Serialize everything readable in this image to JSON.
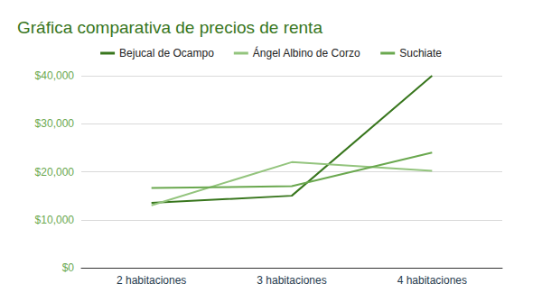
{
  "chart_data": {
    "type": "line",
    "title": "Gráfica comparativa de precios de renta",
    "categories": [
      "2 habitaciones",
      "3 habitaciones",
      "4 habitaciones"
    ],
    "series": [
      {
        "name": "Bejucal de Ocampo",
        "color": "#38761d",
        "values": [
          13500,
          15000,
          40000
        ]
      },
      {
        "name": "Ángel Albino de Corzo",
        "color": "#93c47d",
        "values": [
          13000,
          22000,
          20200
        ]
      },
      {
        "name": "Suchiate",
        "color": "#6aa84f",
        "values": [
          16600,
          17000,
          24000
        ]
      }
    ],
    "ylim": [
      0,
      40000
    ],
    "yticks": [
      {
        "value": 0,
        "label": "$0"
      },
      {
        "value": 10000,
        "label": "$10,000"
      },
      {
        "value": 20000,
        "label": "$20,000"
      },
      {
        "value": 30000,
        "label": "$30,000"
      },
      {
        "value": 40000,
        "label": "$40,000"
      }
    ],
    "grid": true,
    "legend": "top"
  }
}
